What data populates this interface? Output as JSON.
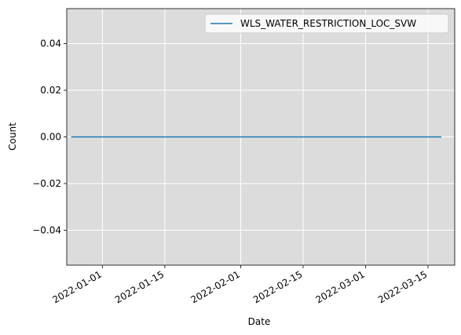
{
  "chart_data": {
    "type": "line",
    "xlabel": "Date",
    "ylabel": "Count",
    "x_scale": "date",
    "xlim": [
      "2021-12-24",
      "2022-03-21"
    ],
    "ylim": [
      -0.055,
      0.055
    ],
    "x_ticks": [
      "2022-01-01",
      "2022-01-15",
      "2022-02-01",
      "2022-02-15",
      "2022-03-01",
      "2022-03-15"
    ],
    "y_ticks": [
      -0.04,
      -0.02,
      0.0,
      0.02,
      0.04
    ],
    "y_tick_labels": [
      "−0.04",
      "−0.02",
      "0.00",
      "0.02",
      "0.04"
    ],
    "grid": true,
    "legend_position": "top-right",
    "background_color": "#dcdcdc",
    "series": [
      {
        "name": "WLS_WATER_RESTRICTION_LOC_SVW",
        "color": "#1f77b4",
        "x": [
          "2021-12-25",
          "2022-03-18"
        ],
        "y": [
          0,
          0
        ]
      }
    ]
  }
}
